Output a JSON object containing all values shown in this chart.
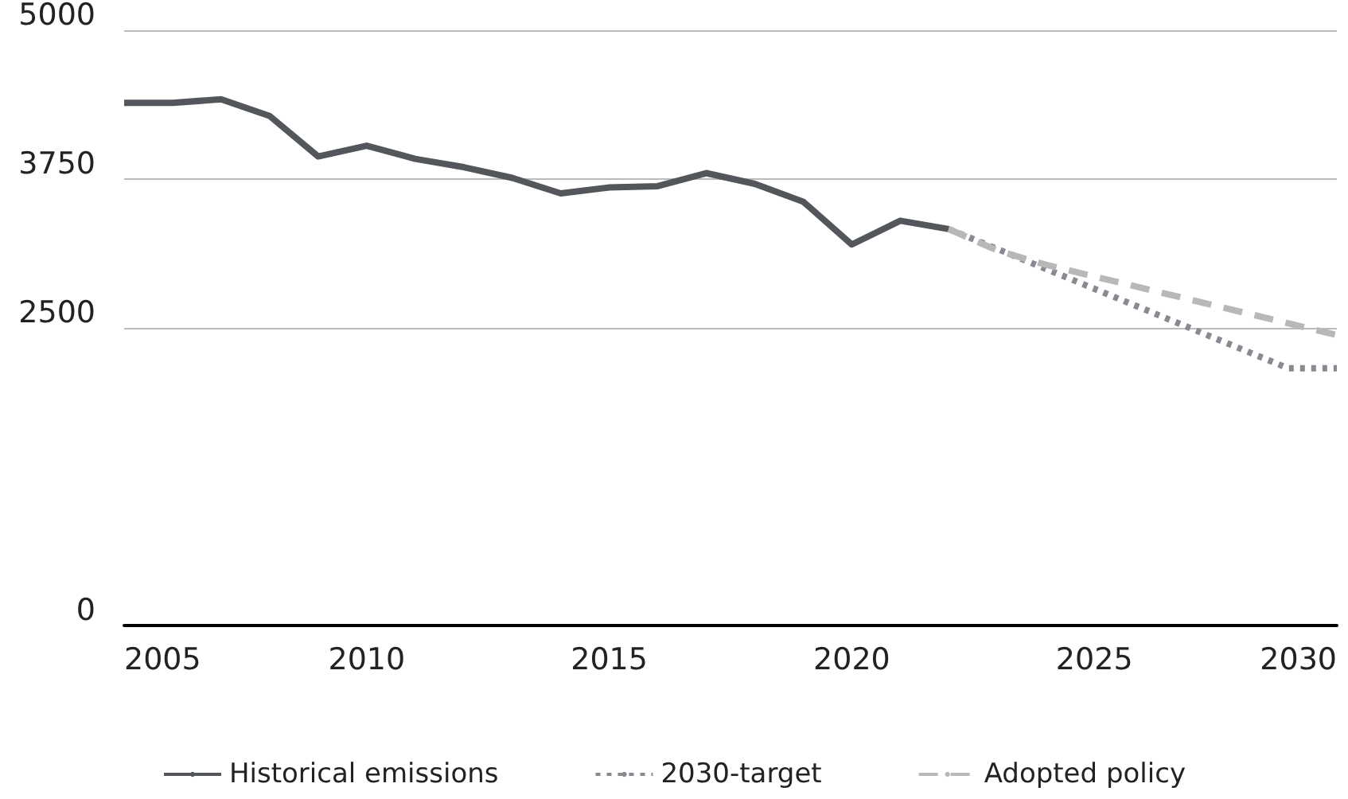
{
  "chart_data": {
    "type": "line",
    "x": [
      2005,
      2006,
      2007,
      2008,
      2009,
      2010,
      2011,
      2012,
      2013,
      2014,
      2015,
      2016,
      2017,
      2018,
      2019,
      2020,
      2021,
      2022
    ],
    "series": [
      {
        "name": "Historical emissions",
        "color": "#53565a",
        "line_style": "solid",
        "values": [
          4390,
          4390,
          4420,
          4280,
          3940,
          4030,
          3920,
          3850,
          3760,
          3630,
          3680,
          3690,
          3800,
          3710,
          3560,
          3200,
          3400,
          3330
        ]
      },
      {
        "name": "2030-target",
        "color": "#8a8890",
        "line_style": "dotted",
        "x": [
          2022,
          2029,
          2030
        ],
        "values": [
          3330,
          2160,
          2160
        ]
      },
      {
        "name": "Adopted policy",
        "color": "#b8b8b8",
        "line_style": "dashed",
        "x": [
          2022,
          2023,
          2024,
          2030
        ],
        "values": [
          3330,
          3150,
          3030,
          2440
        ]
      }
    ],
    "xlim": [
      2005,
      2030
    ],
    "xticks": [
      2005,
      2010,
      2015,
      2020,
      2025,
      2030
    ],
    "ylim": [
      0,
      5000
    ],
    "yticks": [
      0,
      2500,
      3750,
      5000
    ],
    "grid": "y",
    "legend": "bottom",
    "marker": "none"
  }
}
